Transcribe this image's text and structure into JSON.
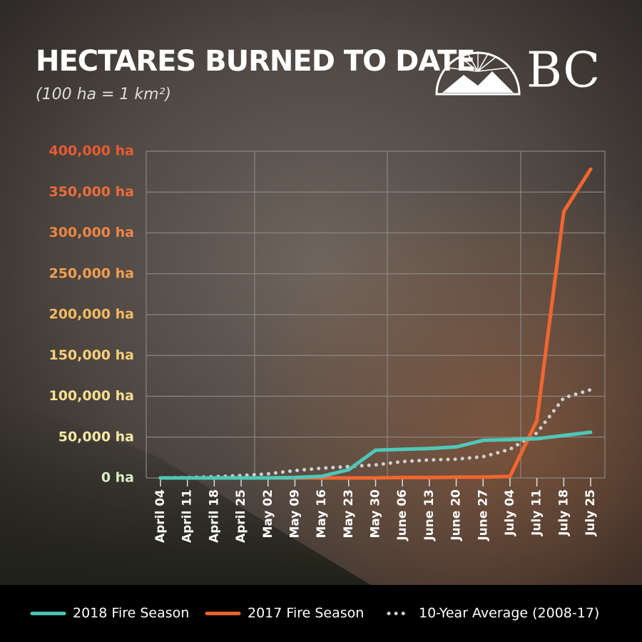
{
  "chart_data": {
    "type": "line",
    "title": "HECTARES BURNED TO DATE",
    "subtitle": "(100 ha = 1 km²)",
    "logo": "BC",
    "categories": [
      "April 04",
      "April 11",
      "April 18",
      "April 25",
      "May 02",
      "May 09",
      "May 16",
      "May 23",
      "May 30",
      "June 06",
      "June 13",
      "June 20",
      "June 27",
      "July 04",
      "July 11",
      "July 18",
      "July 25"
    ],
    "series": [
      {
        "name": "2018 Fire Season",
        "color": "#4fc7b8",
        "style": "solid",
        "values": [
          0,
          0,
          0,
          0,
          0,
          500,
          2000,
          10000,
          34000,
          35000,
          36000,
          38000,
          46000,
          47000,
          48000,
          52000,
          56000
        ]
      },
      {
        "name": "2017 Fire Season",
        "color": "#f2662f",
        "style": "solid",
        "values": [
          0,
          0,
          0,
          0,
          0,
          0,
          0,
          0,
          0,
          500,
          500,
          1000,
          1000,
          2000,
          70000,
          326000,
          378000
        ]
      },
      {
        "name": "10-Year Average (2008-17)",
        "color": "#cfcfcf",
        "style": "dotted",
        "values": [
          0,
          500,
          1500,
          3000,
          5000,
          9000,
          12000,
          14000,
          16000,
          20000,
          22000,
          23000,
          26000,
          35000,
          55000,
          98000,
          108000
        ]
      }
    ],
    "ylim": [
      0,
      400000
    ],
    "yticks": [
      {
        "value": 0,
        "label": "0 ha"
      },
      {
        "value": 50000,
        "label": "50,000 ha"
      },
      {
        "value": 100000,
        "label": "100,000 ha"
      },
      {
        "value": 150000,
        "label": "150,000 ha"
      },
      {
        "value": 200000,
        "label": "200,000 ha"
      },
      {
        "value": 250000,
        "label": "250,000 ha"
      },
      {
        "value": 300000,
        "label": "300,000 ha"
      },
      {
        "value": 350000,
        "label": "350,000 ha"
      },
      {
        "value": 400000,
        "label": "400,000 ha"
      }
    ],
    "ytick_colors": [
      "#d8efc4",
      "#f6e9a6",
      "#f8df90",
      "#f7cf78",
      "#f4b960",
      "#f29e4f",
      "#ef8544",
      "#ec6c3a",
      "#e85a32"
    ],
    "grid": true
  }
}
